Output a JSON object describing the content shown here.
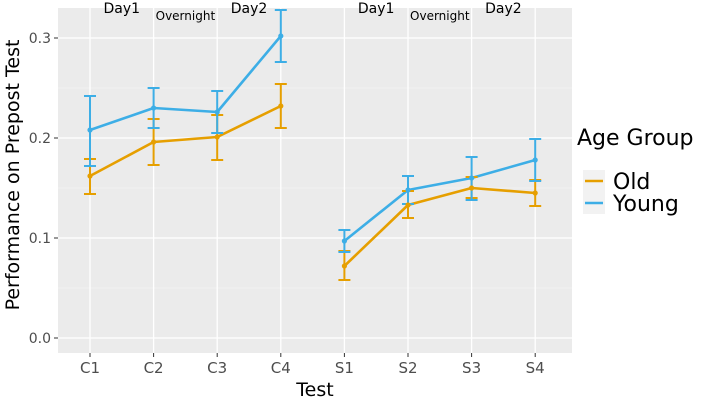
{
  "chart_data": {
    "type": "line",
    "categories": [
      "C1",
      "C2",
      "C3",
      "C4",
      "S1",
      "S2",
      "S3",
      "S4"
    ],
    "xlabel": "Test",
    "ylabel": "Performance on Prepost Test",
    "ylim": [
      -0.015,
      0.33
    ],
    "yticks": [
      "0.0",
      "0.1",
      "0.2",
      "0.3"
    ],
    "ytick_values": [
      0.0,
      0.1,
      0.2,
      0.3
    ],
    "grid": true,
    "legend_title": "Age Group",
    "legend_position": "right",
    "annotations": [
      {
        "text": "Day1",
        "after_category": 0,
        "size": "big"
      },
      {
        "text": "Overnight",
        "between": [
          1,
          2
        ],
        "size": "small"
      },
      {
        "text": "Day2",
        "between": [
          2,
          3
        ],
        "size": "big"
      },
      {
        "text": "Day1",
        "after_category": 4,
        "size": "big"
      },
      {
        "text": "Overnight",
        "between": [
          5,
          6
        ],
        "size": "small"
      },
      {
        "text": "Day2",
        "between": [
          6,
          7
        ],
        "size": "big"
      }
    ],
    "groups": [
      [
        0,
        1,
        2,
        3
      ],
      [
        4,
        5,
        6,
        7
      ]
    ],
    "series": [
      {
        "name": "Old",
        "color": "#E69F00",
        "values": [
          0.162,
          0.196,
          0.201,
          0.232,
          0.072,
          0.133,
          0.15,
          0.145
        ],
        "error_low": [
          0.144,
          0.173,
          0.178,
          0.21,
          0.058,
          0.12,
          0.14,
          0.132
        ],
        "error_high": [
          0.179,
          0.219,
          0.223,
          0.254,
          0.087,
          0.147,
          0.161,
          0.158
        ]
      },
      {
        "name": "Young",
        "color": "#3DAEE6",
        "values": [
          0.208,
          0.23,
          0.226,
          0.302,
          0.097,
          0.148,
          0.16,
          0.178
        ],
        "error_low": [
          0.172,
          0.21,
          0.205,
          0.276,
          0.086,
          0.134,
          0.138,
          0.157
        ],
        "error_high": [
          0.242,
          0.25,
          0.247,
          0.328,
          0.108,
          0.162,
          0.181,
          0.199
        ]
      }
    ]
  }
}
